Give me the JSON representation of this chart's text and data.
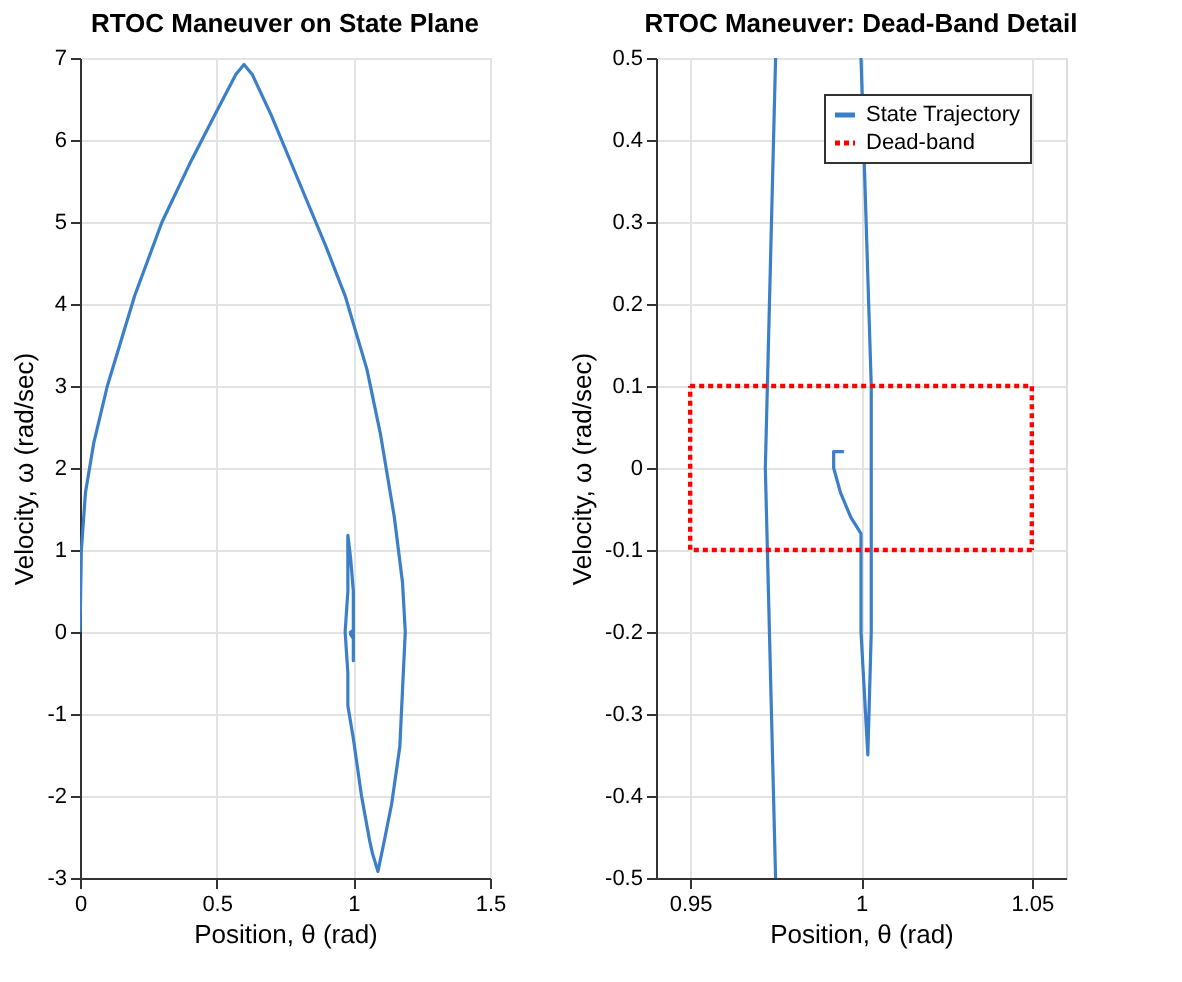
{
  "chart_data": [
    {
      "type": "line",
      "title": "RTOC Maneuver on State Plane",
      "xlabel": "Position, θ (rad)",
      "ylabel": "Velocity, ω (rad/sec)",
      "xlim": [
        0,
        1.5
      ],
      "xticks": [
        0,
        0.5,
        1,
        1.5
      ],
      "ylim": [
        -3,
        7
      ],
      "yticks": [
        -3,
        -2,
        -1,
        0,
        1,
        2,
        3,
        4,
        5,
        6,
        7
      ],
      "grid": true,
      "legend": false,
      "marker": "none",
      "series": [
        {
          "color": "#3a7fc7",
          "line_style": "solid",
          "x": [
            0,
            0.005,
            0.02,
            0.05,
            0.1,
            0.2,
            0.3,
            0.4,
            0.5,
            0.57,
            0.6,
            0.63,
            0.7,
            0.8,
            0.9,
            0.97,
            1.05,
            1.1,
            1.15,
            1.18,
            1.19,
            1.18,
            1.17,
            1.14,
            1.11,
            1.09,
            1.07,
            1.06,
            1.03,
            1.0,
            0.98,
            0.98,
            0.97,
            0.98,
            0.98,
            0.98,
            0.99,
            1.0,
            1.0,
            1.0,
            1.0,
            0.99,
            0.99,
            1.0
          ],
          "values": [
            0,
            1.0,
            1.7,
            2.3,
            3,
            4.1,
            5,
            5.7,
            6.35,
            6.8,
            6.92,
            6.8,
            6.3,
            5.5,
            4.7,
            4.1,
            3.2,
            2.4,
            1.4,
            0.6,
            0,
            -0.7,
            -1.4,
            -2.1,
            -2.6,
            -2.92,
            -2.7,
            -2.55,
            -2.0,
            -1.3,
            -0.9,
            -0.5,
            0,
            0.5,
            0.9,
            1.18,
            0.9,
            0.5,
            0.1,
            -0.35,
            -0.08,
            -0.03,
            0.0,
            0.02
          ]
        }
      ]
    },
    {
      "type": "line",
      "title": "RTOC Maneuver: Dead-Band Detail",
      "xlabel": "Position, θ (rad)",
      "ylabel": "Velocity, ω (rad/sec)",
      "xlim": [
        0.94,
        1.06
      ],
      "xticks": [
        0.95,
        1,
        1.05
      ],
      "ylim": [
        -0.5,
        0.5
      ],
      "yticks": [
        -0.5,
        -0.4,
        -0.3,
        -0.2,
        -0.1,
        0,
        0.1,
        0.2,
        0.3,
        0.4,
        0.5
      ],
      "grid": true,
      "legend": "top right",
      "marker": "none",
      "series": [
        {
          "name": "State Trajectory",
          "color": "#3a7fc7",
          "line_style": "solid",
          "x": [
            0.975,
            0.972,
            0.975,
            null,
            1.0,
            1.003,
            1.003,
            1.002,
            1.0,
            1.0,
            0.997,
            0.994,
            0.992,
            0.992,
            0.995
          ],
          "values": [
            -0.5,
            0,
            0.5,
            null,
            0.5,
            0.1,
            -0.2,
            -0.35,
            -0.2,
            -0.08,
            -0.06,
            -0.03,
            0.0,
            0.02,
            0.02
          ]
        },
        {
          "name": "Dead-band",
          "color": "#ff0000",
          "line_style": "dotted",
          "x": [
            0.95,
            1.05,
            1.05,
            null,
            1.05,
            0.95,
            0.95
          ],
          "values": [
            0.1,
            0.1,
            -0.1,
            null,
            -0.1,
            -0.1,
            0.1
          ]
        }
      ]
    }
  ]
}
